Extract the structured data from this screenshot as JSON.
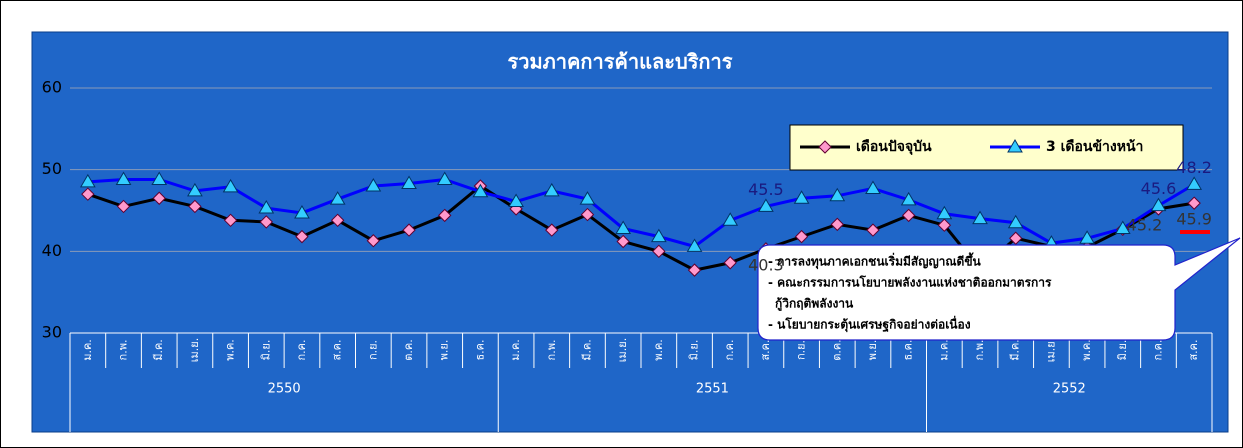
{
  "chart_data": {
    "type": "line",
    "title": "รวมภาคการค้าและบริการ",
    "category_groups": [
      {
        "label": "2550",
        "categories": [
          "ม.ค.",
          "ก.พ.",
          "มี.ค.",
          "เม.ย.",
          "พ.ค.",
          "มิ.ย.",
          "ก.ค.",
          "ส.ค.",
          "ก.ย.",
          "ต.ค.",
          "พ.ย.",
          "ธ.ค."
        ]
      },
      {
        "label": "2551",
        "categories": [
          "ม.ค.",
          "ก.พ.",
          "มี.ค.",
          "เม.ย.",
          "พ.ค.",
          "มิ.ย.",
          "ก.ค.",
          "ส.ค.",
          "ก.ย.",
          "ต.ค.",
          "พ.ย.",
          "ธ.ค."
        ]
      },
      {
        "label": "2552",
        "categories": [
          "ม.ค.",
          "ก.พ.",
          "มี.ค.",
          "เม.ย.",
          "พ.ค.",
          "มิ.ย.",
          "ก.ค.",
          "ส.ค."
        ]
      }
    ],
    "series": [
      {
        "name": "เดือนปัจจุบัน",
        "color": "#000000",
        "marker": "diamond",
        "marker_color": "#ff99cc",
        "label_color": "#333333",
        "values": [
          47.0,
          45.5,
          46.5,
          45.5,
          43.8,
          43.6,
          41.8,
          43.8,
          41.3,
          42.6,
          44.4,
          48.0,
          45.2,
          42.6,
          44.5,
          41.2,
          40.0,
          37.7,
          38.6,
          40.3,
          41.8,
          43.3,
          42.6,
          44.4,
          43.2,
          37.8,
          41.6,
          40.6,
          40.5,
          42.7,
          45.2,
          45.9
        ],
        "value_labels": [
          null,
          null,
          null,
          null,
          null,
          null,
          null,
          null,
          null,
          null,
          null,
          null,
          null,
          null,
          null,
          null,
          null,
          null,
          null,
          "40.3",
          null,
          null,
          null,
          null,
          null,
          null,
          null,
          null,
          null,
          null,
          "45.2",
          "45.9"
        ]
      },
      {
        "name": "3 เดือนข้างหน้า",
        "color": "#0000ff",
        "marker": "triangle",
        "marker_color": "#33ccff",
        "label_color": "#1a1a80",
        "values": [
          48.5,
          48.8,
          48.8,
          47.4,
          47.9,
          45.3,
          44.7,
          46.4,
          48.0,
          48.3,
          48.8,
          47.3,
          46.1,
          47.4,
          46.4,
          42.8,
          41.8,
          40.6,
          43.8,
          45.5,
          46.5,
          46.8,
          47.7,
          46.3,
          44.6,
          44.0,
          43.5,
          41.0,
          41.6,
          42.8,
          45.6,
          48.2
        ],
        "value_labels": [
          null,
          null,
          null,
          null,
          null,
          null,
          null,
          null,
          null,
          null,
          null,
          null,
          null,
          null,
          null,
          null,
          null,
          null,
          null,
          "45.5",
          null,
          null,
          null,
          null,
          null,
          null,
          null,
          null,
          null,
          null,
          "45.6",
          "48.2"
        ]
      }
    ],
    "ylim": [
      30,
      60
    ],
    "yticks": [
      30,
      40,
      50,
      60
    ],
    "grid": true,
    "legend": "upper right",
    "annotation": [
      "- การลงทุนภาคเอกชนเริ่มมีสัญญาณดีขึ้น",
      "- คณะกรรมการนโยบายพลังงานแห่งชาติออกมาตรการ",
      "กู้วิกฤติพลังงาน",
      "- นโยบายกระตุ้นเศรษฐกิจอย่างต่อเนื่อง"
    ]
  }
}
